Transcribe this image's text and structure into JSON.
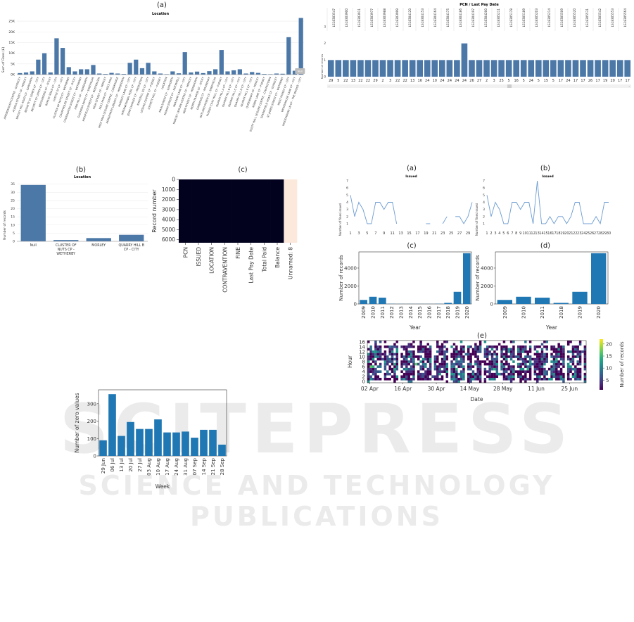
{
  "watermark": {
    "line1": "SCITEPRESS",
    "line2": "SCIENCE AND TECHNOLOGY PUBLICATIONS"
  },
  "chart_data": [
    {
      "id": "top-left-a",
      "panel_letter": "(a)",
      "type": "bar",
      "title": "Location",
      "ylabel": "Sum of Fines (£)",
      "yticks": [
        "0K",
        "5K",
        "10K",
        "15K",
        "20K",
        "25K"
      ],
      "ylim": [
        0,
        27000
      ],
      "bar_color": "#4c78a8",
      "categories": [
        "AIREBOROUGH CENTRE - GUISELEY",
        "ALBION STREET CP - MORLEY",
        "BARLEY HILL ROAD CP - GARFORTH",
        "BECKETT ST LOWER CP - CITY",
        "BECKETT ST UPPER CP - CITY",
        "BEECHWOOD CP - OTLEY",
        "BURLEY ROAD CP - CITY",
        "CASTLE ST CP - CITY",
        "CLUSTER OF NUTS CP - WETHERBY",
        "COURTHOUSE STREET CP - OTLEY",
        "CROSSGATES STREET CP - WETHERBY",
        "FINK HILL CP - HORSFORTH",
        "GLEDHOW ROAD CP - SHEEPSCAR",
        "HIGHFIELD STREET CP - BOSTON SPA",
        "HIGH STREET CP - MORLEY",
        "HOLT PARK CP - HOLT PARK",
        "HOLT PARK LEISURE CENTRE - COOKRIDGE",
        "HORSFORTH LIBRARY CP - HORSFORTH",
        "HUNSLET LANE CP - CITY",
        "INTERNATIONAL POOL CP - CITY",
        "JOHN CHARLES CP - MIDDLETON",
        "KIRKSTALL RD CP - CITY",
        "LEISURE CENTRE CP - PUDSEY",
        "LOCKETT HILL CP - PUDSEY",
        "LOCATION",
        "MAIN STREET CP - GARFORTH",
        "MARSH STREET CP - ROTHWELL",
        "MEADOW LANE CP - CITY",
        "MORLEY LEISURE CENTRE CP - MORLEY",
        "NEW STREET CP - HORSFORTH",
        "NORTH PARADE CP - OTLEY",
        "OAKWOOD CP - ROUNDHAY",
        "OATLAND GREEN CP - SHEEPSCAR",
        "PUDSEY CIVIC HALL CP - PUDSEY",
        "QUARRY HILL A CP - CITY",
        "QUARRY HILL B CP - CITY",
        "QUARRY HILL C CP - CITY",
        "QUARRY HILL D CP - CITY",
        "QUARRY HILL E CP - CITY",
        "QUEENSWAY CP - MORLEY",
        "ROBIN LANE CP - PUDSEY",
        "SCOTT HALL LEISURE CENTRE - CHAPELTOWN",
        "SPRINGFIELD ROAD CP - GUISELEY",
        "ST JAMES STREET CP - WETHERBY",
        "WEST STREET CP - CITY",
        "WOODHOUSE LANE CP - CITY",
        "WOODHOUSE LN CP - THE BRIDGE - CITY"
      ],
      "values": [
        700,
        1000,
        1500,
        7000,
        10000,
        1000,
        17000,
        12500,
        3500,
        1500,
        2500,
        2500,
        4500,
        500,
        300,
        800,
        500,
        300,
        5500,
        7000,
        3000,
        5500,
        1500,
        500,
        200,
        1500,
        600,
        10500,
        1000,
        1400,
        700,
        1600,
        2500,
        11500,
        1500,
        2000,
        2500,
        500,
        1200,
        800,
        300,
        200,
        500,
        400,
        17500,
        1800,
        26500
      ],
      "annotation": "Null"
    },
    {
      "id": "top-left-b",
      "panel_letter": "(b)",
      "type": "bar",
      "title": "Location",
      "ylabel": "Number of records",
      "yticks": [
        "0",
        "5",
        "10",
        "15",
        "20",
        "25",
        "30",
        "35"
      ],
      "ylim": [
        0,
        37
      ],
      "bar_color": "#4c78a8",
      "categories": [
        "Null",
        "CLUSTER OF NUTS CP - WETHERBY",
        "MORLEY",
        "QUARRY HILL B CP - CITY"
      ],
      "values": [
        34.5,
        0.8,
        2,
        4
      ]
    },
    {
      "id": "top-left-c",
      "panel_letter": "(c)",
      "type": "heatmap",
      "ylabel": "Record number",
      "yticks": [
        "0",
        "1000",
        "2000",
        "3000",
        "4000",
        "5000",
        "6000"
      ],
      "columns": [
        "PCN",
        "ISSUED",
        "LOCATION",
        "CONTRAVENTION",
        "FINE",
        "Last Pay Date",
        "Total Paid",
        "Balance",
        "Unnamed: 8"
      ],
      "missing_column": "Unnamed: 8",
      "present_color": "#02021f",
      "missing_color": "#fde8dc"
    },
    {
      "id": "top-right-pcn",
      "type": "bar",
      "title": "PCN  /  Last Pay Date",
      "ylabel": "Number of records",
      "yticks": [
        "0",
        "1",
        "2",
        "3"
      ],
      "ylim": [
        0,
        3
      ],
      "bar_color": "#4c78a8",
      "pcn_labels": [
        "LS18303547",
        "LS18303900",
        "LS18303911",
        "LS18303977",
        "LS18303988",
        "LS18303999",
        "LS18304120",
        "LS18304153",
        "LS18304164",
        "LS18304175",
        "LS18304186",
        "LS18304197",
        "LS18304200",
        "LS18305211",
        "LS18305178",
        "LS18305189",
        "LS18305203",
        "LS18305214",
        "LS18305509",
        "LS18305520",
        "LS18305531",
        "LS18305542",
        "LS18305553",
        "LS18305564"
      ],
      "day_labels": [
        "29",
        "5",
        "22",
        "13",
        "22",
        "22",
        "29",
        "2",
        "3",
        "22",
        "22",
        "13",
        "16",
        "24",
        "10",
        "24",
        "24",
        "24",
        "24",
        "26",
        "27",
        "2",
        "3",
        "25",
        "5",
        "16",
        "5",
        "24",
        "5",
        "15",
        "5",
        "17",
        "24",
        "17",
        "17",
        "26",
        "17",
        "19",
        "20",
        "17",
        "17"
      ],
      "values": [
        1,
        1,
        1,
        1,
        1,
        1,
        1,
        1,
        1,
        1,
        1,
        1,
        1,
        1,
        1,
        1,
        1,
        1,
        2,
        1,
        1,
        1,
        1,
        1,
        1,
        1,
        1,
        1,
        1,
        1,
        1,
        1,
        1,
        1,
        1,
        1,
        1,
        1,
        1,
        1,
        1
      ]
    },
    {
      "id": "right-a",
      "panel_letter": "(a)",
      "type": "line",
      "title": "Issued",
      "ylabel": "Number of fines issued",
      "yticks": [
        "1",
        "2",
        "3",
        "4",
        "5",
        "6",
        "7"
      ],
      "ylim": [
        0.5,
        7
      ],
      "xticks": [
        "1",
        "3",
        "5",
        "7",
        "9",
        "11",
        "13",
        "15",
        "17",
        "19",
        "21",
        "23",
        "25",
        "27",
        "29"
      ],
      "x": [
        1,
        2,
        3,
        4,
        5,
        6,
        7,
        8,
        9,
        10,
        11,
        12,
        13,
        14,
        15,
        16,
        17,
        18,
        19,
        20,
        21,
        22,
        23,
        24,
        25,
        26,
        27,
        28,
        29,
        30
      ],
      "values": [
        5,
        2,
        4,
        3,
        1,
        1,
        4,
        4,
        3,
        4,
        4,
        1,
        null,
        null,
        null,
        null,
        null,
        null,
        1,
        1,
        null,
        null,
        1,
        2,
        null,
        2,
        2,
        1,
        2,
        4
      ],
      "line_color": "#6b9bd1"
    },
    {
      "id": "right-b",
      "panel_letter": "(b)",
      "type": "line",
      "title": "Issued",
      "ylabel": "Number of fines issued",
      "yticks": [
        "1",
        "2",
        "3",
        "4",
        "5",
        "6",
        "7"
      ],
      "ylim": [
        0.5,
        7
      ],
      "xticks": [
        "1",
        "2",
        "3",
        "4",
        "5",
        "6",
        "7",
        "8",
        "9",
        "10",
        "11",
        "12",
        "13",
        "14",
        "15",
        "16",
        "17",
        "18",
        "19",
        "20",
        "21",
        "22",
        "23",
        "24",
        "25",
        "26",
        "27",
        "28",
        "29",
        "30"
      ],
      "x": [
        1,
        2,
        3,
        4,
        5,
        6,
        7,
        8,
        9,
        10,
        11,
        12,
        13,
        14,
        15,
        16,
        17,
        18,
        19,
        20,
        21,
        22,
        23,
        24,
        25,
        26,
        27,
        28,
        29,
        30
      ],
      "values": [
        5,
        2,
        4,
        3,
        1,
        1,
        4,
        4,
        3,
        4,
        4,
        1,
        7,
        1,
        1,
        2,
        1,
        2,
        2,
        1,
        2,
        4,
        4,
        1,
        1,
        1,
        2,
        1,
        4,
        4
      ],
      "line_color": "#6b9bd1"
    },
    {
      "id": "right-c",
      "panel_letter": "(c)",
      "type": "bar",
      "xlabel": "Year",
      "ylabel": "Number of records",
      "yticks": [
        "0",
        "2000",
        "4000"
      ],
      "ylim": [
        0,
        5800
      ],
      "bar_color": "#1f77b4",
      "categories": [
        "2009",
        "2010",
        "2011",
        "2012",
        "2013",
        "2014",
        "2015",
        "2016",
        "2017",
        "2018",
        "2019",
        "2020"
      ],
      "values": [
        450,
        800,
        700,
        20,
        10,
        10,
        10,
        10,
        20,
        120,
        1350,
        5650
      ]
    },
    {
      "id": "right-d",
      "panel_letter": "(d)",
      "type": "bar",
      "xlabel": "Year",
      "ylabel": "Number of records",
      "yticks": [
        "0",
        "2000",
        "4000"
      ],
      "ylim": [
        0,
        5800
      ],
      "bar_color": "#1f77b4",
      "categories": [
        "2009",
        "2010",
        "2011",
        "2018",
        "2019",
        "2020"
      ],
      "values": [
        450,
        800,
        700,
        120,
        1350,
        5650
      ]
    },
    {
      "id": "right-e",
      "panel_letter": "(e)",
      "type": "heatmap",
      "xlabel": "Date",
      "ylabel": "Hour",
      "yticks": [
        "0",
        "2",
        "4",
        "6",
        "8",
        "10",
        "12",
        "14",
        "16"
      ],
      "xticks": [
        "02 Apr",
        "16 Apr",
        "30 Apr",
        "14 May",
        "28 May",
        "11 Jun",
        "25 Jun"
      ],
      "colorbar_label": "Number of records",
      "colorbar_ticks": [
        "5",
        "10",
        "15",
        "20"
      ],
      "colorbar_range": [
        1,
        22
      ]
    },
    {
      "id": "bottom-left-zero",
      "type": "bar",
      "xlabel": "Week",
      "ylabel": "Number of zero values",
      "yticks": [
        "0",
        "100",
        "200",
        "300"
      ],
      "ylim": [
        0,
        380
      ],
      "bar_color": "#1f77b4",
      "categories": [
        "29 Jun",
        "06 Jul",
        "13 Jul",
        "20 Jul",
        "27 Jul",
        "03 Aug",
        "10 Aug",
        "17 Aug",
        "24 Aug",
        "31 Aug",
        "07 Sep",
        "14 Sep",
        "21 Sep",
        "28 Sep"
      ],
      "values": [
        90,
        355,
        115,
        195,
        155,
        155,
        210,
        135,
        135,
        140,
        105,
        150,
        150,
        65
      ]
    }
  ]
}
